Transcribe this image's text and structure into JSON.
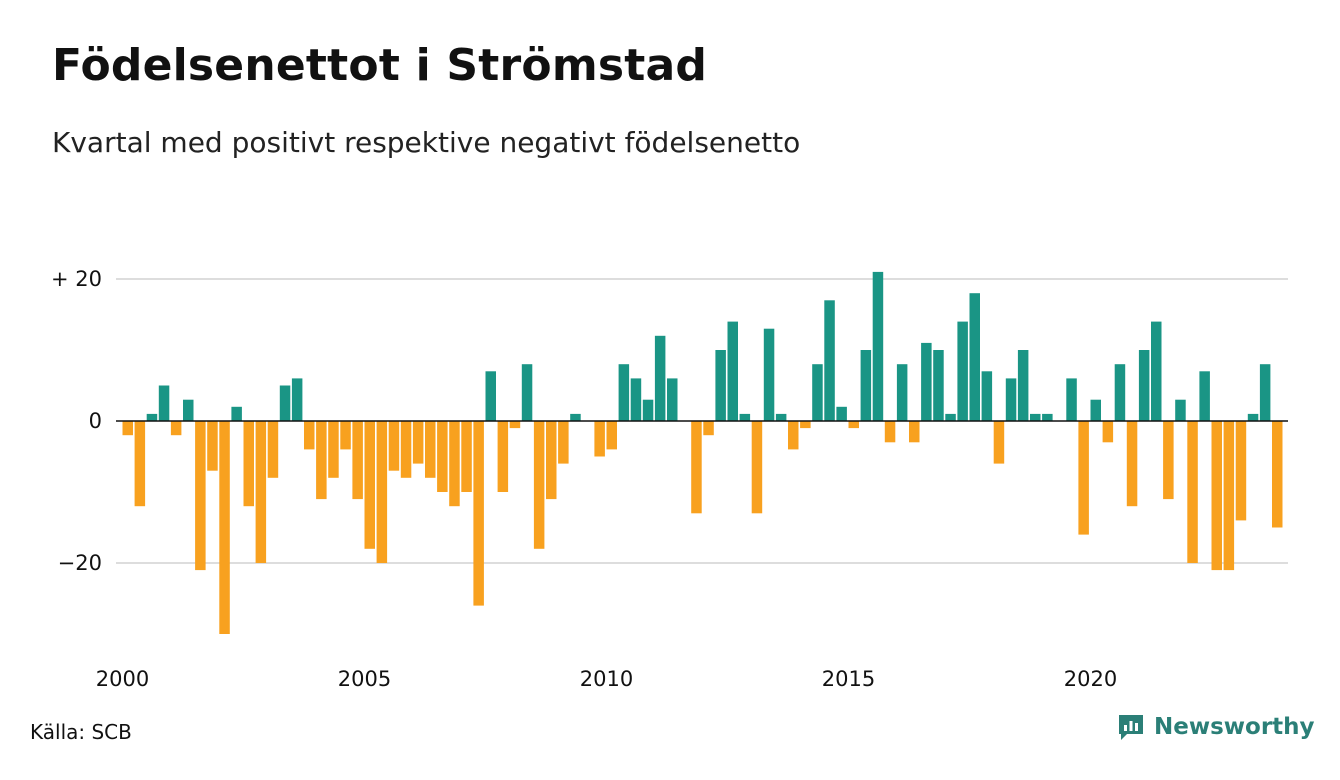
{
  "header": {
    "title": "Födelsenettot i Strömstad",
    "subtitle": "Kvartal med positivt respektive negativt födelsenetto"
  },
  "footer": {
    "source": "Källa: SCB",
    "brand": "Newsworthy"
  },
  "colors": {
    "positive": "#1a9585",
    "negative": "#f8a11f",
    "grid": "#dddddd",
    "brand": "#2b7f77"
  },
  "icons": {
    "brand_logo": "newsworthy-logo-icon"
  },
  "chart_data": {
    "type": "bar",
    "x_start": "2000 Q1",
    "x_ticks": [
      {
        "label": "2000",
        "year": 2000
      },
      {
        "label": "2005",
        "year": 2005
      },
      {
        "label": "2010",
        "year": 2010
      },
      {
        "label": "2015",
        "year": 2015
      },
      {
        "label": "2020",
        "year": 2020
      }
    ],
    "y_ticks": [
      {
        "label": "+ 20",
        "value": 20
      },
      {
        "label": "0",
        "value": 0
      },
      {
        "label": "−20",
        "value": -20
      }
    ],
    "ylim": [
      -30,
      21
    ],
    "grid": true,
    "values": [
      -2,
      -12,
      1,
      5,
      -2,
      3,
      -21,
      -7,
      -30,
      2,
      -12,
      -20,
      -8,
      5,
      6,
      -4,
      -11,
      -8,
      -4,
      -11,
      -18,
      -20,
      -7,
      -8,
      -6,
      -8,
      -10,
      -12,
      -10,
      -26,
      7,
      -10,
      -1,
      8,
      -18,
      -11,
      -6,
      1,
      0,
      -5,
      -4,
      8,
      6,
      3,
      12,
      6,
      0,
      -13,
      -2,
      10,
      14,
      1,
      -13,
      13,
      1,
      -4,
      -1,
      8,
      17,
      2,
      -1,
      10,
      21,
      -3,
      8,
      -3,
      11,
      10,
      1,
      14,
      18,
      7,
      -6,
      6,
      10,
      1,
      1,
      0,
      6,
      -16,
      3,
      -3,
      8,
      -12,
      10,
      14,
      -11,
      3,
      -20,
      7,
      -21,
      -21,
      -14,
      1,
      8,
      -15
    ]
  }
}
